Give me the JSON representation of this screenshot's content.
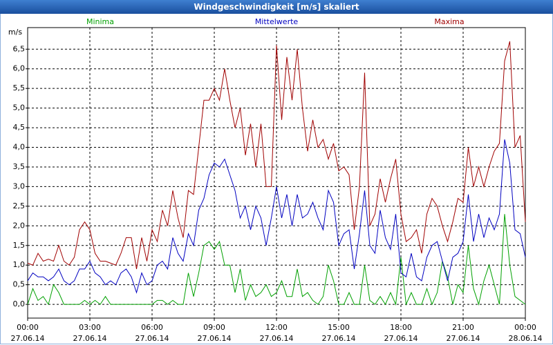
{
  "chart_data": {
    "type": "line",
    "title": "Windgeschwindigkeit [m/s] skaliert",
    "y_label": "m/s",
    "grid": true,
    "xlim": [
      0,
      24
    ],
    "ylim": [
      -0.35,
      7.05
    ],
    "yticks": [
      {
        "value": 0,
        "label": "0,0"
      },
      {
        "value": 0.5,
        "label": "0,5"
      },
      {
        "value": 1,
        "label": "1,0"
      },
      {
        "value": 1.5,
        "label": "1,5"
      },
      {
        "value": 2,
        "label": "2,0"
      },
      {
        "value": 2.5,
        "label": "2,5"
      },
      {
        "value": 3,
        "label": "3,0"
      },
      {
        "value": 3.5,
        "label": "3,5"
      },
      {
        "value": 4,
        "label": "4,0"
      },
      {
        "value": 4.5,
        "label": "4,5"
      },
      {
        "value": 5,
        "label": "5,0"
      },
      {
        "value": 5.5,
        "label": "5,5"
      },
      {
        "value": 6,
        "label": "6,0"
      },
      {
        "value": 6.5,
        "label": "6,5"
      }
    ],
    "xticks": [
      {
        "value": 0,
        "label": [
          "00:00",
          "27.06.14"
        ]
      },
      {
        "value": 3,
        "label": [
          "03:00",
          "27.06.14"
        ]
      },
      {
        "value": 6,
        "label": [
          "06:00",
          "27.06.14"
        ]
      },
      {
        "value": 9,
        "label": [
          "09:00",
          "27.06.14"
        ]
      },
      {
        "value": 12,
        "label": [
          "12:00",
          "27.06.14"
        ]
      },
      {
        "value": 15,
        "label": [
          "15:00",
          "27.06.14"
        ]
      },
      {
        "value": 18,
        "label": [
          "18:00",
          "27.06.14"
        ]
      },
      {
        "value": 21,
        "label": [
          "21:00",
          "27.06.14"
        ]
      },
      {
        "value": 24,
        "label": [
          "00:00",
          "28.06.14"
        ]
      }
    ],
    "x": [
      0,
      0.25,
      0.5,
      0.75,
      1,
      1.25,
      1.5,
      1.75,
      2,
      2.25,
      2.5,
      2.75,
      3,
      3.25,
      3.5,
      3.75,
      4,
      4.25,
      4.5,
      4.75,
      5,
      5.25,
      5.5,
      5.75,
      6,
      6.25,
      6.5,
      6.75,
      7,
      7.25,
      7.5,
      7.75,
      8,
      8.25,
      8.5,
      8.75,
      9,
      9.25,
      9.5,
      9.75,
      10,
      10.25,
      10.5,
      10.75,
      11,
      11.25,
      11.5,
      11.75,
      12,
      12.25,
      12.5,
      12.75,
      13,
      13.25,
      13.5,
      13.75,
      14,
      14.25,
      14.5,
      14.75,
      15,
      15.25,
      15.5,
      15.75,
      16,
      16.25,
      16.5,
      16.75,
      17,
      17.25,
      17.5,
      17.75,
      18,
      18.25,
      18.5,
      18.75,
      19,
      19.25,
      19.5,
      19.75,
      20,
      20.25,
      20.5,
      20.75,
      21,
      21.25,
      21.5,
      21.75,
      22,
      22.25,
      22.5,
      22.75,
      23,
      23.25,
      23.5,
      23.75,
      24
    ],
    "series": [
      {
        "name": "Minima",
        "color": "#00a000",
        "values": [
          0,
          0.4,
          0.1,
          0.2,
          0,
          0.5,
          0.3,
          0,
          0,
          0,
          0,
          0.1,
          0,
          0.1,
          0,
          0.2,
          0,
          0,
          0,
          0,
          0,
          0,
          0,
          0,
          0,
          0.1,
          0.1,
          0,
          0.1,
          0,
          0,
          0.8,
          0.2,
          0.8,
          1.5,
          1.6,
          1.4,
          1.6,
          1.0,
          1.0,
          0.3,
          0.9,
          0.1,
          0.5,
          0.2,
          0.3,
          0.5,
          0.2,
          0.3,
          0.6,
          0.2,
          0.2,
          0.9,
          0.2,
          0.3,
          0.1,
          0,
          0.2,
          1.0,
          0.6,
          0,
          0,
          0.3,
          0,
          0,
          1.0,
          0.1,
          0,
          0.2,
          0,
          0.3,
          0,
          1.2,
          0,
          0.3,
          0,
          0,
          0.4,
          0,
          0.3,
          1.1,
          0.7,
          0,
          0.5,
          0.3,
          1.5,
          0.4,
          0,
          0.6,
          1.0,
          0.5,
          0,
          2.3,
          1.0,
          0.2,
          0.1,
          0
        ]
      },
      {
        "name": "Mittelwerte",
        "color": "#0000c0",
        "values": [
          0.6,
          0.8,
          0.7,
          0.7,
          0.6,
          0.7,
          0.9,
          0.6,
          0.5,
          0.6,
          0.9,
          0.9,
          1.1,
          0.8,
          0.7,
          0.5,
          0.6,
          0.5,
          0.8,
          0.9,
          0.7,
          0.3,
          0.8,
          0.5,
          0.6,
          1.0,
          1.1,
          0.9,
          1.7,
          1.3,
          1.1,
          1.8,
          1.5,
          2.4,
          2.7,
          3.3,
          3.6,
          3.5,
          3.7,
          3.3,
          2.9,
          2.2,
          2.5,
          1.9,
          2.5,
          2.2,
          1.5,
          2.2,
          3.0,
          2.2,
          2.8,
          2.0,
          2.8,
          2.2,
          2.3,
          2.6,
          2.2,
          1.9,
          2.9,
          2.6,
          1.5,
          1.8,
          1.9,
          0.9,
          1.8,
          2.9,
          1.5,
          1.3,
          2.4,
          1.7,
          1.4,
          2.3,
          0.8,
          0.7,
          1.3,
          0.7,
          0.6,
          1.2,
          1.5,
          1.6,
          1.1,
          0.6,
          1.2,
          1.3,
          1.6,
          2.8,
          1.6,
          2.3,
          1.7,
          2.2,
          1.9,
          2.3,
          4.2,
          3.6,
          1.9,
          1.8,
          1.2
        ]
      },
      {
        "name": "Maxima",
        "color": "#a00000",
        "values": [
          1.05,
          1.0,
          1.3,
          1.1,
          1.15,
          1.1,
          1.5,
          1.1,
          1.0,
          1.2,
          1.9,
          2.1,
          1.9,
          1.3,
          1.1,
          1.1,
          1.05,
          1.0,
          1.3,
          1.7,
          1.7,
          0.9,
          1.7,
          1.1,
          1.9,
          1.6,
          2.4,
          2.0,
          2.9,
          2.2,
          1.7,
          2.9,
          2.8,
          4.0,
          5.2,
          5.2,
          5.5,
          5.2,
          6.0,
          5.2,
          4.5,
          5.0,
          3.8,
          4.6,
          3.5,
          4.6,
          3.0,
          3.0,
          6.6,
          4.7,
          6.3,
          5.2,
          6.5,
          5.0,
          3.9,
          4.7,
          4.0,
          4.2,
          3.7,
          4.1,
          3.4,
          3.5,
          3.3,
          1.9,
          3.0,
          5.9,
          2.0,
          2.3,
          3.2,
          2.6,
          3.2,
          3.7,
          2.3,
          1.6,
          1.7,
          1.9,
          1.3,
          2.3,
          2.7,
          2.5,
          2.0,
          1.6,
          2.1,
          2.7,
          2.6,
          4.0,
          3.0,
          3.5,
          3.0,
          3.5,
          3.9,
          4.1,
          6.2,
          6.7,
          4.0,
          4.3,
          2.1
        ]
      }
    ]
  }
}
